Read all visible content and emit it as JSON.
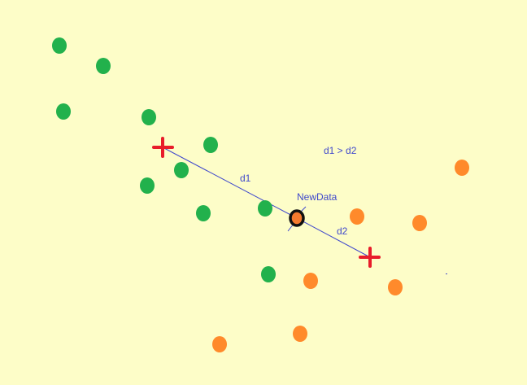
{
  "labels": {
    "d1": "d1",
    "d2": "d2",
    "new_data": "NewData",
    "comparison": "d1 > d2"
  },
  "colors": {
    "background": "#FDFDC8",
    "class_green": "#22B14C",
    "class_orange": "#FF8A2B",
    "centroid": "#E81C2A",
    "line": "#3F48CC",
    "label_text": "#3F48CC",
    "new_data_ring": "#111111",
    "new_data_fill": "#F47A2E"
  },
  "icons": {
    "centroid": "red-plus-marker",
    "new_data": "black-ringed-point"
  }
}
